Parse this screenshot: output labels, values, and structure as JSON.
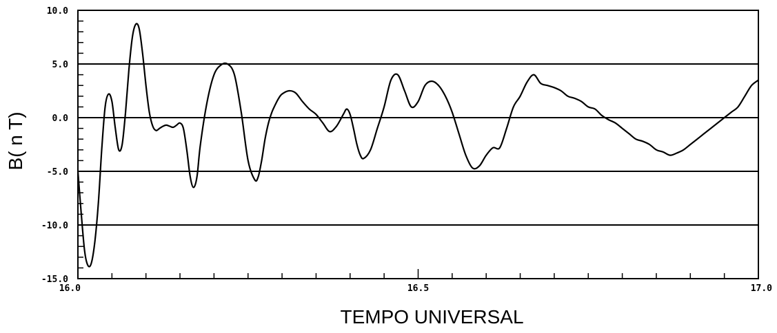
{
  "chart_data": {
    "type": "line",
    "title": "",
    "xlabel": "TEMPO UNIVERSAL",
    "ylabel": "B( n T)",
    "xlim": [
      16.0,
      17.0
    ],
    "ylim": [
      -15.0,
      10.0
    ],
    "x_tick_labels": [
      {
        "value": 16.0,
        "label": "16.0"
      },
      {
        "value": 16.5,
        "label": "16.5"
      },
      {
        "value": 17.0,
        "label": "17.0"
      }
    ],
    "x_minor_step": 0.05,
    "y_tick_labels": [
      {
        "value": 10.0,
        "label": "10.0"
      },
      {
        "value": 5.0,
        "label": "5.0"
      },
      {
        "value": 0.0,
        "label": "0.0"
      },
      {
        "value": -5.0,
        "label": "-5.0"
      },
      {
        "value": -10.0,
        "label": "-10.0"
      },
      {
        "value": -15.0,
        "label": "-15.0"
      }
    ],
    "y_minor_step": 1.0,
    "horizontal_gridlines": [
      5.0,
      0.0,
      -5.0,
      -10.0
    ],
    "grid": "horizontal at labeled y ticks",
    "series": [
      {
        "color": "#000000",
        "x": [
          16.0,
          16.005,
          16.01,
          16.015,
          16.02,
          16.025,
          16.03,
          16.035,
          16.04,
          16.045,
          16.05,
          16.055,
          16.06,
          16.065,
          16.07,
          16.075,
          16.08,
          16.085,
          16.09,
          16.095,
          16.1,
          16.105,
          16.11,
          16.115,
          16.12,
          16.125,
          16.13,
          16.135,
          16.14,
          16.145,
          16.15,
          16.155,
          16.16,
          16.165,
          16.17,
          16.175,
          16.18,
          16.19,
          16.2,
          16.21,
          16.22,
          16.23,
          16.24,
          16.25,
          16.26,
          16.265,
          16.27,
          16.275,
          16.28,
          16.285,
          16.29,
          16.295,
          16.3,
          16.31,
          16.32,
          16.33,
          16.34,
          16.35,
          16.36,
          16.37,
          16.38,
          16.39,
          16.395,
          16.4,
          16.405,
          16.41,
          16.415,
          16.42,
          16.43,
          16.44,
          16.45,
          16.46,
          16.47,
          16.48,
          16.49,
          16.5,
          16.51,
          16.52,
          16.53,
          16.54,
          16.55,
          16.56,
          16.57,
          16.58,
          16.59,
          16.6,
          16.61,
          16.62,
          16.63,
          16.64,
          16.65,
          16.66,
          16.67,
          16.68,
          16.69,
          16.7,
          16.71,
          16.72,
          16.73,
          16.74,
          16.75,
          16.76,
          16.77,
          16.78,
          16.79,
          16.8,
          16.81,
          16.82,
          16.83,
          16.84,
          16.85,
          16.86,
          16.87,
          16.88,
          16.89,
          16.9,
          16.91,
          16.92,
          16.93,
          16.94,
          16.95,
          16.96,
          16.97,
          16.98,
          16.99,
          17.0
        ],
        "y": [
          -5.0,
          -9.0,
          -12.5,
          -13.8,
          -13.5,
          -11.5,
          -8.0,
          -3.0,
          1.0,
          2.2,
          1.5,
          -1.0,
          -3.0,
          -2.5,
          0.5,
          4.5,
          7.5,
          8.7,
          8.3,
          6.0,
          3.0,
          0.5,
          -0.8,
          -1.2,
          -1.0,
          -0.8,
          -0.7,
          -0.8,
          -0.9,
          -0.7,
          -0.5,
          -1.0,
          -3.0,
          -5.5,
          -6.5,
          -5.5,
          -2.5,
          1.5,
          4.0,
          4.9,
          5.0,
          4.0,
          0.5,
          -4.0,
          -5.8,
          -5.5,
          -4.0,
          -2.0,
          -0.5,
          0.5,
          1.2,
          1.8,
          2.2,
          2.5,
          2.3,
          1.5,
          0.8,
          0.3,
          -0.5,
          -1.3,
          -0.8,
          0.3,
          0.8,
          0.3,
          -1.0,
          -2.5,
          -3.5,
          -3.8,
          -3.0,
          -1.0,
          1.0,
          3.5,
          4.0,
          2.5,
          1.0,
          1.5,
          3.0,
          3.4,
          3.0,
          2.0,
          0.5,
          -1.5,
          -3.5,
          -4.7,
          -4.5,
          -3.5,
          -2.8,
          -2.8,
          -1.0,
          1.0,
          2.0,
          3.3,
          4.0,
          3.2,
          3.0,
          2.8,
          2.5,
          2.0,
          1.8,
          1.5,
          1.0,
          0.8,
          0.2,
          -0.2,
          -0.5,
          -1.0,
          -1.5,
          -2.0,
          -2.2,
          -2.5,
          -3.0,
          -3.2,
          -3.5,
          -3.3,
          -3.0,
          -2.5,
          -2.0,
          -1.5,
          -1.0,
          -0.5,
          0.0,
          0.5,
          1.0,
          2.0,
          3.0,
          3.5
        ]
      }
    ]
  }
}
